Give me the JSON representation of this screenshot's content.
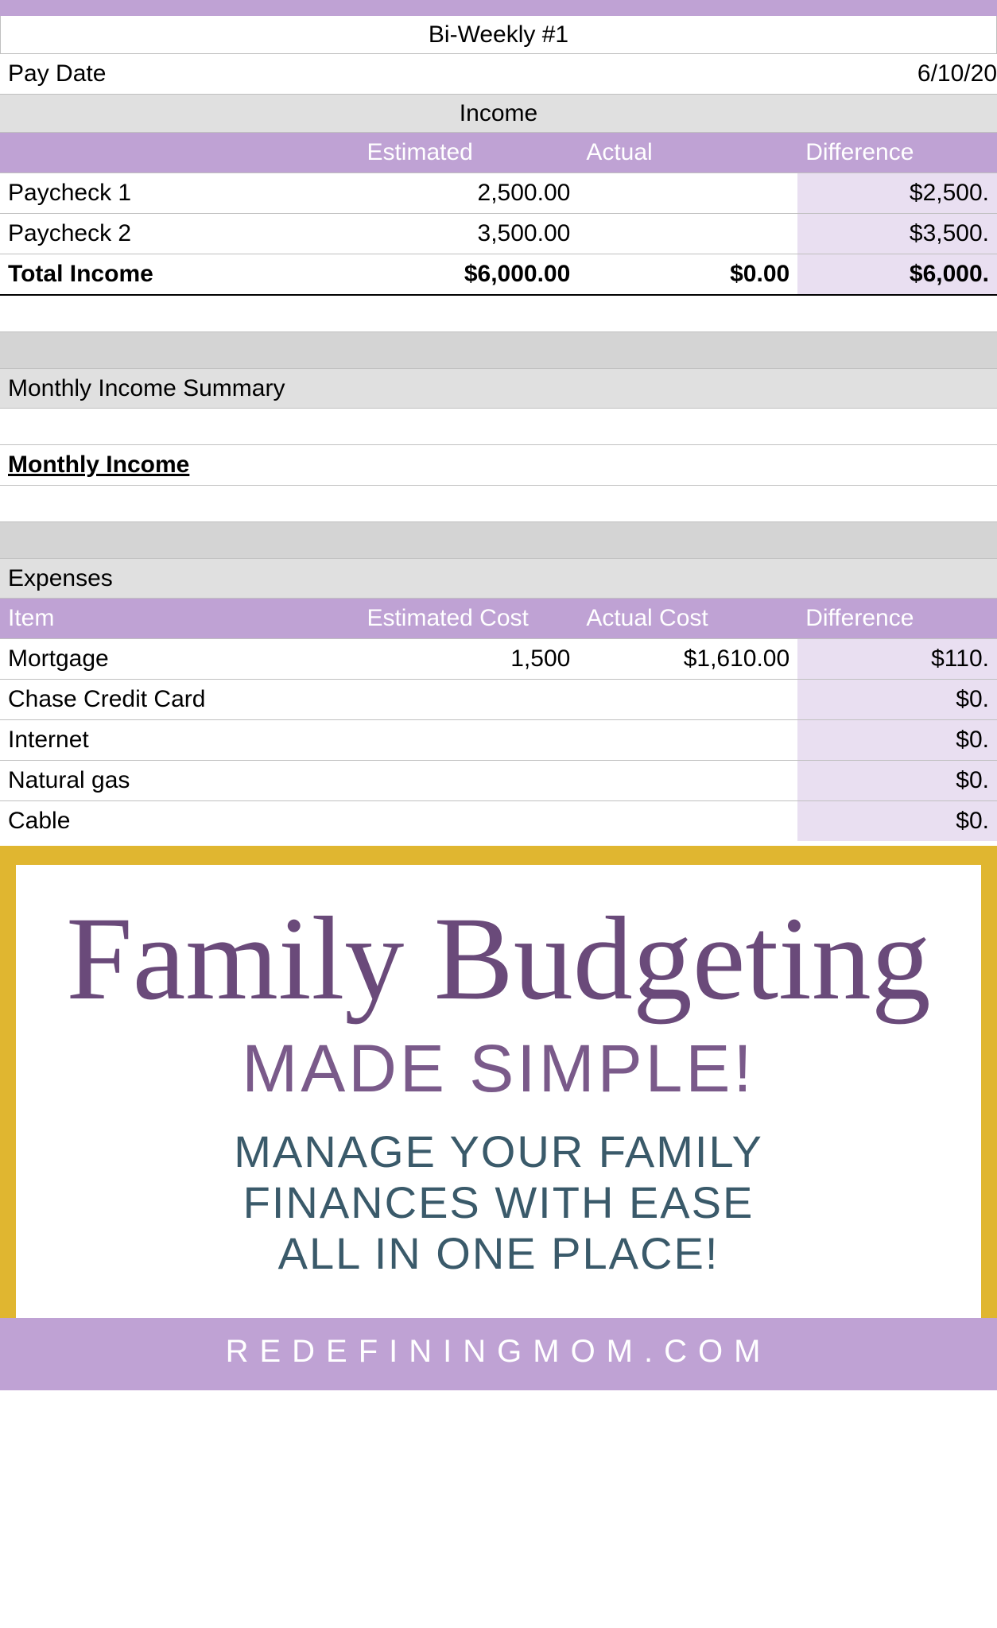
{
  "colors": {
    "purple_header": "#bfa2d4",
    "diff_bg": "#e9dff1",
    "gray_label": "#e0e0e0",
    "gray_bar": "#d4d4d4",
    "banner_outer": "#e0b630",
    "banner_title": "#6a4a7a",
    "banner_sub": "#7a5a8a",
    "banner_tagline": "#3a5a6a"
  },
  "spreadsheet": {
    "period_title": "Bi-Weekly #1",
    "pay_date_label": "Pay Date",
    "pay_date_value": "6/10/20",
    "income": {
      "section_title": "Income",
      "columns": {
        "est": "Estimated",
        "act": "Actual",
        "diff": "Difference"
      },
      "rows": [
        {
          "label": "Paycheck 1",
          "estimated": "2,500.00",
          "actual": "",
          "difference": "$2,500."
        },
        {
          "label": "Paycheck 2",
          "estimated": "3,500.00",
          "actual": "",
          "difference": "$3,500."
        }
      ],
      "total": {
        "label": "Total Income",
        "estimated": "$6,000.00",
        "actual": "$0.00",
        "difference": "$6,000."
      }
    },
    "monthly_summary_label": "Monthly Income Summary",
    "monthly_income_label": "Monthly Income",
    "expenses": {
      "section_title": "Expenses",
      "columns": {
        "item": "Item",
        "est": "Estimated Cost",
        "act": "Actual Cost",
        "diff": "Difference"
      },
      "rows": [
        {
          "label": "Mortgage",
          "estimated": "1,500",
          "actual": "$1,610.00",
          "difference": "$110."
        },
        {
          "label": "Chase Credit Card",
          "estimated": "",
          "actual": "",
          "difference": "$0."
        },
        {
          "label": "Internet",
          "estimated": "",
          "actual": "",
          "difference": "$0."
        },
        {
          "label": "Natural gas",
          "estimated": "",
          "actual": "",
          "difference": "$0."
        },
        {
          "label": "Cable",
          "estimated": "",
          "actual": "",
          "difference": "$0."
        }
      ]
    }
  },
  "banner": {
    "title": "Family Budgeting",
    "subtitle": "MADE SIMPLE!",
    "tagline_l1": "MANAGE YOUR FAMILY",
    "tagline_l2": "FINANCES WITH EASE",
    "tagline_l3": "ALL IN ONE PLACE!",
    "footer": "REDEFININGMOM.COM"
  }
}
